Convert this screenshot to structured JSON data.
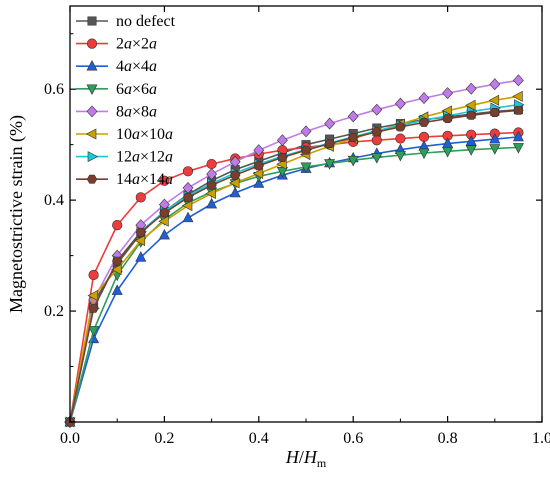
{
  "chart_data": {
    "type": "line",
    "xlabel": "H/H_m",
    "ylabel": "Magnetostrictive strain (%)",
    "xlim": [
      0.0,
      1.0
    ],
    "ylim": [
      0.0,
      0.75
    ],
    "x_ticks": [
      "0.0",
      "0.2",
      "0.4",
      "0.6",
      "0.8",
      "1.0"
    ],
    "y_ticks": [
      "0.2",
      "0.4",
      "0.6"
    ],
    "grid": false,
    "legend_position": "top-left",
    "x": [
      0,
      0.05,
      0.1,
      0.15,
      0.2,
      0.25,
      0.3,
      0.35,
      0.4,
      0.45,
      0.5,
      0.55,
      0.6,
      0.65,
      0.7,
      0.75,
      0.8,
      0.85,
      0.9,
      0.95
    ],
    "series": [
      {
        "name": "no defect",
        "color": "#555555",
        "marker": "square",
        "values": [
          0.0,
          0.215,
          0.285,
          0.34,
          0.38,
          0.41,
          0.435,
          0.455,
          0.47,
          0.485,
          0.5,
          0.51,
          0.52,
          0.53,
          0.538,
          0.545,
          0.55,
          0.555,
          0.56,
          0.563
        ]
      },
      {
        "name": "2a×2a",
        "color": "#ee3b3b",
        "marker": "circle",
        "values": [
          0.0,
          0.265,
          0.355,
          0.405,
          0.435,
          0.452,
          0.465,
          0.475,
          0.483,
          0.49,
          0.495,
          0.5,
          0.505,
          0.508,
          0.511,
          0.514,
          0.516,
          0.518,
          0.52,
          0.522
        ]
      },
      {
        "name": "4a×4a",
        "color": "#1f5fd6",
        "marker": "triangle-up",
        "values": [
          0.0,
          0.15,
          0.237,
          0.297,
          0.337,
          0.368,
          0.393,
          0.413,
          0.43,
          0.445,
          0.457,
          0.467,
          0.476,
          0.484,
          0.491,
          0.497,
          0.502,
          0.506,
          0.51,
          0.514
        ]
      },
      {
        "name": "6a×6a",
        "color": "#2e9e5a",
        "marker": "triangle-down",
        "values": [
          0.0,
          0.165,
          0.265,
          0.325,
          0.365,
          0.395,
          0.415,
          0.43,
          0.443,
          0.452,
          0.46,
          0.466,
          0.472,
          0.477,
          0.481,
          0.485,
          0.488,
          0.491,
          0.493,
          0.495
        ]
      },
      {
        "name": "8a×8a",
        "color": "#c07be8",
        "marker": "diamond",
        "values": [
          0.0,
          0.22,
          0.3,
          0.355,
          0.392,
          0.422,
          0.447,
          0.469,
          0.49,
          0.508,
          0.524,
          0.538,
          0.551,
          0.563,
          0.574,
          0.584,
          0.593,
          0.601,
          0.609,
          0.616
        ]
      },
      {
        "name": "10a×10a",
        "color": "#c9a000",
        "marker": "triangle-left",
        "values": [
          0.0,
          0.228,
          0.275,
          0.327,
          0.362,
          0.39,
          0.412,
          0.431,
          0.448,
          0.465,
          0.482,
          0.497,
          0.511,
          0.524,
          0.537,
          0.55,
          0.561,
          0.571,
          0.58,
          0.587
        ]
      },
      {
        "name": "12a×12a",
        "color": "#19c9d9",
        "marker": "triangle-right",
        "values": [
          0.0,
          0.205,
          0.29,
          0.343,
          0.38,
          0.408,
          0.43,
          0.449,
          0.465,
          0.479,
          0.491,
          0.503,
          0.514,
          0.525,
          0.535,
          0.544,
          0.552,
          0.56,
          0.566,
          0.572
        ]
      },
      {
        "name": "14a×14a",
        "color": "#7a3e2e",
        "marker": "hexagon",
        "values": [
          0.0,
          0.205,
          0.29,
          0.342,
          0.377,
          0.405,
          0.427,
          0.445,
          0.462,
          0.477,
          0.49,
          0.502,
          0.513,
          0.523,
          0.532,
          0.54,
          0.547,
          0.553,
          0.558,
          0.562
        ]
      }
    ]
  }
}
